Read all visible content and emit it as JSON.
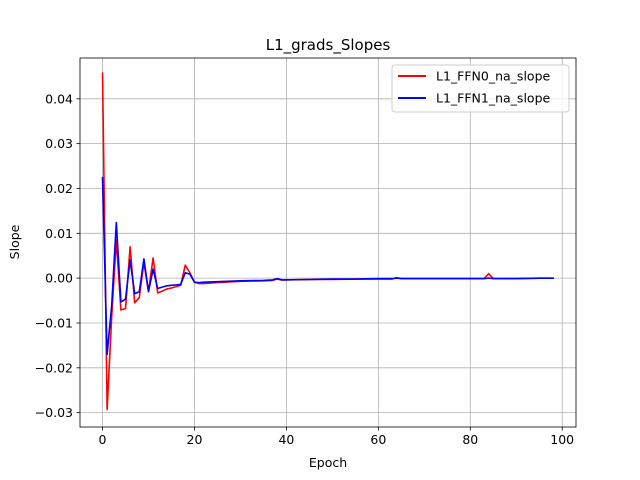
{
  "chart_data": {
    "type": "line",
    "title": "L1_grads_Slopes",
    "xlabel": "Epoch",
    "ylabel": "Slope",
    "xlim": [
      -4.9,
      103
    ],
    "ylim": [
      -0.0332,
      0.0491
    ],
    "xticks": [
      0,
      20,
      40,
      60,
      80,
      100
    ],
    "xtick_labels": [
      "0",
      "20",
      "40",
      "60",
      "80",
      "100"
    ],
    "yticks": [
      -0.03,
      -0.02,
      -0.01,
      0.0,
      0.01,
      0.02,
      0.03,
      0.04
    ],
    "ytick_labels": [
      "−0.03",
      "−0.02",
      "−0.01",
      "0.00",
      "0.01",
      "0.02",
      "0.03",
      "0.04"
    ],
    "grid": true,
    "legend_position": "top-right",
    "series": [
      {
        "name": "L1_FFN0_na_slope",
        "color": "#ff0000",
        "x": [
          0,
          1,
          2,
          3,
          4,
          5,
          6,
          7,
          8,
          9,
          10,
          11,
          12,
          13,
          14,
          15,
          16,
          17,
          18,
          19,
          20,
          21,
          22,
          25,
          30,
          35,
          37,
          38,
          39,
          45,
          50,
          55,
          60,
          63,
          64,
          65,
          70,
          75,
          80,
          83,
          84,
          85,
          90,
          95,
          98
        ],
        "y": [
          0.0457,
          -0.0293,
          -0.0085,
          0.0085,
          -0.0071,
          -0.0068,
          0.007,
          -0.0055,
          -0.0043,
          0.0035,
          -0.003,
          0.0045,
          -0.0033,
          -0.0029,
          -0.0024,
          -0.0022,
          -0.0019,
          -0.0016,
          0.0029,
          0.0012,
          -0.0009,
          -0.0012,
          -0.0012,
          -0.001,
          -0.0007,
          -0.0006,
          -0.0005,
          -0.0002,
          -0.0004,
          -0.0003,
          -0.0003,
          -0.0002,
          -0.0002,
          -0.0002,
          0.0001,
          -0.0001,
          -0.0001,
          -0.0001,
          -0.0001,
          -0.0001,
          0.001,
          -0.0001,
          -0.0001,
          0.0,
          0.0
        ]
      },
      {
        "name": "L1_FFN1_na_slope",
        "color": "#0000ff",
        "x": [
          0,
          1,
          2,
          3,
          4,
          5,
          6,
          7,
          8,
          9,
          10,
          11,
          12,
          13,
          14,
          15,
          16,
          17,
          18,
          19,
          20,
          21,
          22,
          25,
          30,
          35,
          37,
          38,
          39,
          45,
          50,
          55,
          60,
          63,
          64,
          65,
          70,
          75,
          80,
          83,
          84,
          85,
          90,
          95,
          98
        ],
        "y": [
          0.0224,
          -0.017,
          -0.006,
          0.0124,
          -0.0053,
          -0.0047,
          0.004,
          -0.0035,
          -0.003,
          0.0043,
          -0.003,
          0.002,
          -0.0023,
          -0.002,
          -0.0017,
          -0.0016,
          -0.0015,
          -0.0014,
          0.0012,
          0.0009,
          -0.0009,
          -0.001,
          -0.0009,
          -0.0008,
          -0.0006,
          -0.0005,
          -0.0004,
          -0.0001,
          -0.0004,
          -0.0003,
          -0.0002,
          -0.0002,
          -0.0001,
          -0.0001,
          0.0,
          -0.0001,
          -0.0001,
          -0.0001,
          -0.0001,
          -0.0001,
          0.0,
          -0.0001,
          -0.0001,
          0.0,
          0.0
        ]
      }
    ]
  }
}
